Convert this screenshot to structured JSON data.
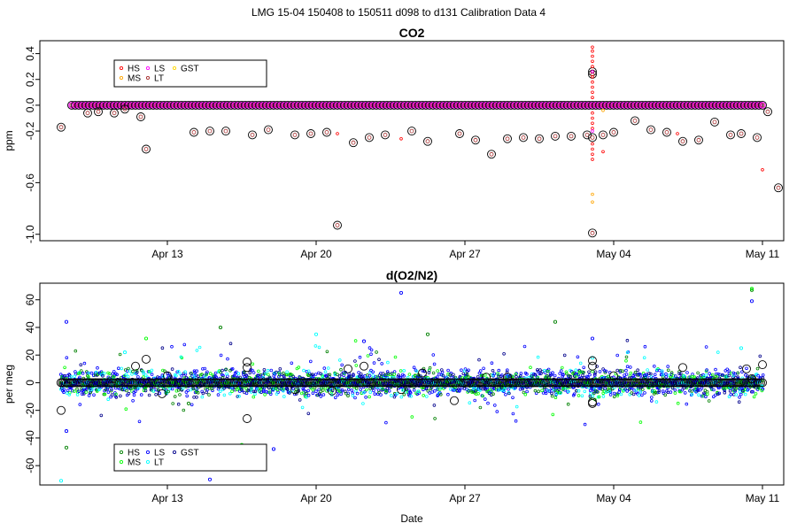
{
  "title": "LMG   15-04    150408 to 150511    d098 to d131   Calibration Data 4",
  "colors": {
    "HS": "#ff0000",
    "MS": "#ffa500",
    "LS": "#ff00ff",
    "LT": "#a52a2a",
    "GST": "#ffd700",
    "HS2": "#008000",
    "MS2": "#00ff00",
    "LS2": "#0000ff",
    "LT2": "#00ffff",
    "GST2": "#00008b"
  },
  "chart_data": [
    {
      "type": "scatter",
      "title": "CO2",
      "xlabel": "",
      "ylabel": "ppm",
      "xlim": [
        "2015-04-07",
        "2015-05-12"
      ],
      "ylim": [
        -1.05,
        0.5
      ],
      "yticks": [
        0.4,
        0.2,
        0.0,
        -0.2,
        -0.6,
        -1.0
      ],
      "ytick_labels": [
        "0.4",
        "0.2",
        "0.0",
        "-0.2",
        "-0.6",
        "-1.0"
      ],
      "xticks": [
        "2015-04-13",
        "2015-04-20",
        "2015-04-27",
        "2015-05-04",
        "2015-05-11"
      ],
      "xtick_labels": [
        "Apr 13",
        "Apr 20",
        "Apr 27",
        "May 04",
        "May 11"
      ],
      "legend": {
        "position": "top-left",
        "entries": [
          "HS",
          "MS",
          "LS",
          "LT",
          "GST"
        ]
      },
      "baseline": {
        "x_start": "2015-04-08T12:00",
        "x_end": "2015-05-11T00:00",
        "step_hours": 4,
        "y": 0.0
      },
      "series": [
        {
          "name": "LT",
          "points": [
            [
              "2015-04-08T00:00",
              -0.17
            ],
            [
              "2015-04-09T06:00",
              -0.06
            ],
            [
              "2015-04-09T18:00",
              -0.05
            ],
            [
              "2015-04-10T12:00",
              -0.06
            ],
            [
              "2015-04-11T00:00",
              -0.03
            ],
            [
              "2015-04-11T18:00",
              -0.09
            ],
            [
              "2015-04-12T00:00",
              -0.34
            ],
            [
              "2015-04-14T06:00",
              -0.21
            ],
            [
              "2015-04-15T00:00",
              -0.2
            ],
            [
              "2015-04-15T18:00",
              -0.2
            ],
            [
              "2015-04-17T00:00",
              -0.23
            ],
            [
              "2015-04-17T18:00",
              -0.19
            ],
            [
              "2015-04-19T00:00",
              -0.23
            ],
            [
              "2015-04-19T18:00",
              -0.22
            ],
            [
              "2015-04-20T12:00",
              -0.21
            ],
            [
              "2015-04-21T00:00",
              -0.93
            ],
            [
              "2015-04-21T18:00",
              -0.29
            ],
            [
              "2015-04-22T12:00",
              -0.25
            ],
            [
              "2015-04-23T06:00",
              -0.23
            ],
            [
              "2015-04-24T12:00",
              -0.2
            ],
            [
              "2015-04-25T06:00",
              -0.28
            ],
            [
              "2015-04-26T18:00",
              -0.22
            ],
            [
              "2015-04-27T12:00",
              -0.27
            ],
            [
              "2015-04-28T06:00",
              -0.38
            ],
            [
              "2015-04-29T00:00",
              -0.26
            ],
            [
              "2015-04-29T18:00",
              -0.25
            ],
            [
              "2015-04-30T12:00",
              -0.26
            ],
            [
              "2015-05-01T06:00",
              -0.24
            ],
            [
              "2015-05-02T00:00",
              -0.24
            ],
            [
              "2015-05-02T18:00",
              -0.23
            ],
            [
              "2015-05-03T12:00",
              -0.23
            ],
            [
              "2015-05-04T00:00",
              -0.21
            ],
            [
              "2015-05-05T00:00",
              -0.12
            ],
            [
              "2015-05-05T18:00",
              -0.19
            ],
            [
              "2015-05-06T12:00",
              -0.21
            ],
            [
              "2015-05-07T06:00",
              -0.28
            ],
            [
              "2015-05-08T00:00",
              -0.27
            ],
            [
              "2015-05-08T18:00",
              -0.13
            ],
            [
              "2015-05-09T12:00",
              -0.23
            ],
            [
              "2015-05-10T00:00",
              -0.22
            ],
            [
              "2015-05-10T18:00",
              -0.25
            ],
            [
              "2015-05-11T06:00",
              -0.05
            ],
            [
              "2015-05-11T18:00",
              -0.64
            ],
            [
              "2015-05-03T00:00",
              0.26
            ],
            [
              "2015-05-03T00:00",
              0.24
            ],
            [
              "2015-05-03T00:00",
              -0.25
            ],
            [
              "2015-05-03T00:00",
              -0.99
            ]
          ]
        },
        {
          "name": "HS",
          "points": [
            [
              "2015-05-03T00:00",
              0.45
            ],
            [
              "2015-05-03T00:00",
              0.42
            ],
            [
              "2015-05-03T00:00",
              0.38
            ],
            [
              "2015-05-03T00:00",
              0.34
            ],
            [
              "2015-05-03T00:00",
              0.3
            ],
            [
              "2015-05-03T00:00",
              0.22
            ],
            [
              "2015-05-03T00:00",
              0.18
            ],
            [
              "2015-05-03T00:00",
              0.14
            ],
            [
              "2015-05-03T00:00",
              0.1
            ],
            [
              "2015-05-03T00:00",
              0.06
            ],
            [
              "2015-05-03T00:00",
              -0.06
            ],
            [
              "2015-05-03T00:00",
              -0.1
            ],
            [
              "2015-05-03T00:00",
              -0.14
            ],
            [
              "2015-05-03T00:00",
              -0.18
            ],
            [
              "2015-05-03T00:00",
              -0.3
            ],
            [
              "2015-05-03T00:00",
              -0.34
            ],
            [
              "2015-05-03T00:00",
              -0.38
            ],
            [
              "2015-05-03T00:00",
              -0.42
            ],
            [
              "2015-04-21T00:00",
              -0.22
            ],
            [
              "2015-04-24T00:00",
              -0.26
            ],
            [
              "2015-05-07T00:00",
              -0.22
            ],
            [
              "2015-05-11T00:00",
              -0.5
            ],
            [
              "2015-05-03T12:00",
              -0.36
            ]
          ]
        },
        {
          "name": "MS",
          "points": [
            [
              "2015-05-03T00:00",
              -0.69
            ],
            [
              "2015-05-03T00:00",
              -0.75
            ],
            [
              "2015-05-03T12:00",
              -0.04
            ]
          ]
        },
        {
          "name": "LS",
          "points": [
            [
              "2015-05-03T00:00",
              0.26
            ],
            [
              "2015-05-03T00:00",
              -0.2
            ]
          ]
        }
      ]
    },
    {
      "type": "scatter",
      "title": "d(O2/N2)",
      "xlabel": "Date",
      "ylabel": "per meg",
      "xlim": [
        "2015-04-07",
        "2015-05-12"
      ],
      "ylim": [
        -74,
        72
      ],
      "yticks": [
        60,
        40,
        20,
        0,
        -20,
        -40,
        -60
      ],
      "ytick_labels": [
        "60",
        "40",
        "20",
        "0",
        "-20",
        "-40",
        "-60"
      ],
      "xticks": [
        "2015-04-13",
        "2015-04-20",
        "2015-04-27",
        "2015-05-04",
        "2015-05-11"
      ],
      "xtick_labels": [
        "Apr 13",
        "Apr 20",
        "Apr 27",
        "May 04",
        "May 11"
      ],
      "legend": {
        "position": "bottom-left",
        "entries": [
          "HS",
          "MS",
          "LS",
          "LT",
          "GST"
        ]
      },
      "cloud": {
        "x_start": "2015-04-08T00:00",
        "x_end": "2015-05-11T00:00",
        "step_hours": 2,
        "typical_spread": 8,
        "wide_spread": 25
      },
      "series": [
        {
          "name": "LT",
          "points": [
            [
              "2015-04-08T00:00",
              -71
            ],
            [
              "2015-04-11T00:00",
              22
            ],
            [
              "2015-04-20T00:00",
              35
            ],
            [
              "2015-05-03T00:00",
              18
            ],
            [
              "2015-05-10T00:00",
              25
            ]
          ]
        },
        {
          "name": "LS",
          "points": [
            [
              "2015-04-08T06:00",
              44
            ],
            [
              "2015-04-24T00:00",
              65
            ],
            [
              "2015-04-15T00:00",
              -70
            ],
            [
              "2015-05-10T12:00",
              59
            ],
            [
              "2015-04-22T06:00",
              30
            ],
            [
              "2015-04-18T00:00",
              -48
            ],
            [
              "2015-05-03T00:00",
              32
            ],
            [
              "2015-04-08T06:00",
              -35
            ]
          ]
        },
        {
          "name": "HS",
          "points": [
            [
              "2015-05-10T12:00",
              67
            ],
            [
              "2015-05-01T06:00",
              44
            ],
            [
              "2015-04-15T12:00",
              40
            ],
            [
              "2015-04-14T00:00",
              -15
            ],
            [
              "2015-04-25T06:00",
              35
            ],
            [
              "2015-04-08T06:00",
              -47
            ]
          ]
        },
        {
          "name": "MS",
          "points": [
            [
              "2015-05-10T12:00",
              68
            ],
            [
              "2015-04-12T00:00",
              32
            ],
            [
              "2015-04-16T12:00",
              -45
            ]
          ]
        },
        {
          "name": "GST",
          "points": [
            [
              "2015-04-08T00:00",
              -20
            ],
            [
              "2015-04-08T00:00",
              0
            ],
            [
              "2015-04-11T12:00",
              12
            ],
            [
              "2015-04-12T00:00",
              17
            ],
            [
              "2015-04-12T18:00",
              -8
            ],
            [
              "2015-04-16T18:00",
              -26
            ],
            [
              "2015-04-16T18:00",
              15
            ],
            [
              "2015-04-16T18:00",
              11
            ],
            [
              "2015-04-20T18:00",
              -6
            ],
            [
              "2015-04-21T12:00",
              10
            ],
            [
              "2015-04-22T06:00",
              12
            ],
            [
              "2015-04-24T00:00",
              -5
            ],
            [
              "2015-04-25T00:00",
              7
            ],
            [
              "2015-04-26T12:00",
              -13
            ],
            [
              "2015-04-28T00:00",
              4
            ],
            [
              "2015-05-03T00:00",
              16
            ],
            [
              "2015-05-03T00:00",
              12
            ],
            [
              "2015-05-03T00:00",
              -14
            ],
            [
              "2015-05-03T00:00",
              -15
            ],
            [
              "2015-05-07T06:00",
              11
            ],
            [
              "2015-05-10T06:00",
              10
            ],
            [
              "2015-05-11T00:00",
              13
            ],
            [
              "2015-05-10T12:00",
              3
            ],
            [
              "2015-05-04T00:00",
              5
            ],
            [
              "2015-04-29T00:00",
              4
            ],
            [
              "2015-04-19T00:00",
              -5
            ],
            [
              "2015-04-13T00:00",
              5
            ]
          ]
        }
      ]
    }
  ]
}
